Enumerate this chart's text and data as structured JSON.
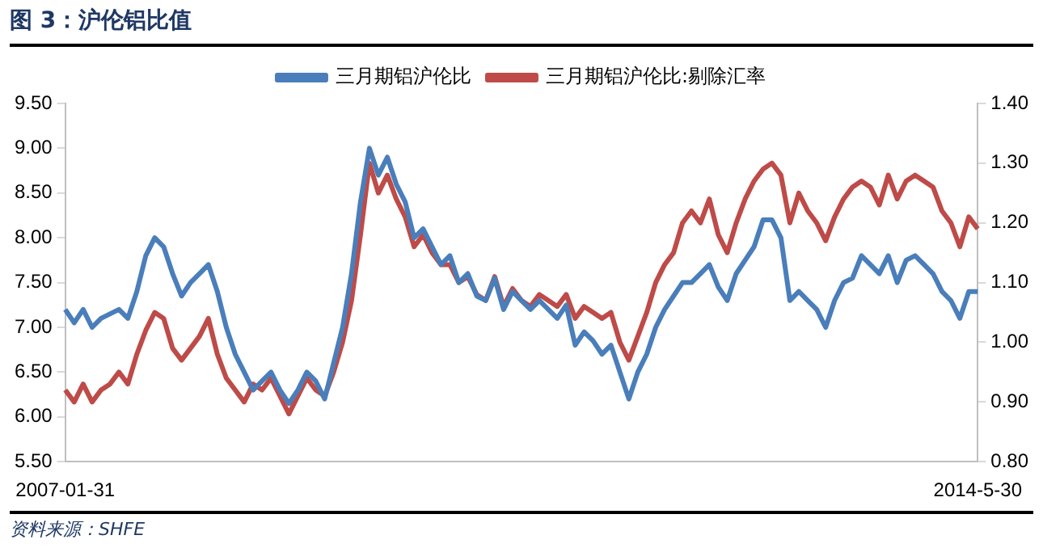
{
  "chart_data": {
    "type": "line",
    "title": "图 3：沪伦铝比值",
    "categories": [
      "2007-01-31",
      null,
      null,
      null,
      null,
      null,
      null,
      null,
      null,
      null,
      null,
      null,
      null,
      null,
      null,
      null,
      null,
      null,
      null,
      null,
      null,
      null,
      null,
      null,
      null,
      null,
      null,
      null,
      null,
      null,
      null,
      null,
      null,
      null,
      null,
      null,
      null,
      null,
      null,
      null,
      null,
      null,
      null,
      null,
      null,
      null,
      null,
      null,
      null,
      null,
      null,
      null,
      null,
      null,
      null,
      null,
      null,
      null,
      null,
      null,
      null,
      null,
      null,
      null,
      null,
      null,
      null,
      null,
      null,
      null,
      null,
      null,
      null,
      null,
      null,
      null,
      null,
      null,
      null,
      null,
      null,
      null,
      null,
      null,
      null,
      null,
      null,
      null,
      null,
      null,
      null,
      null,
      null,
      null,
      null,
      null,
      null,
      null,
      null,
      null,
      null,
      null,
      "2014-5-30"
    ],
    "series": [
      {
        "name": "三月期铝沪伦比",
        "color": "#4a7ebb",
        "values": [
          7.2,
          7.05,
          7.2,
          7.0,
          7.1,
          7.15,
          7.2,
          7.1,
          7.4,
          7.8,
          8.0,
          7.9,
          7.6,
          7.35,
          7.5,
          7.6,
          7.7,
          7.4,
          7.0,
          6.7,
          6.5,
          6.3,
          6.4,
          6.5,
          6.3,
          6.15,
          6.3,
          6.5,
          6.4,
          6.2,
          6.6,
          7.0,
          7.6,
          8.4,
          9.0,
          8.7,
          8.9,
          8.6,
          8.4,
          8.0,
          8.1,
          7.9,
          7.7,
          7.8,
          7.5,
          7.6,
          7.35,
          7.3,
          7.55,
          7.2,
          7.4,
          7.3,
          7.2,
          7.3,
          7.2,
          7.1,
          7.25,
          6.8,
          6.95,
          6.85,
          6.7,
          6.8,
          6.5,
          6.2,
          6.5,
          6.7,
          7.0,
          7.2,
          7.35,
          7.5,
          7.5,
          7.6,
          7.7,
          7.45,
          7.3,
          7.6,
          7.75,
          7.9,
          8.2,
          8.2,
          8.0,
          7.3,
          7.4,
          7.3,
          7.2,
          7.0,
          7.3,
          7.5,
          7.55,
          7.8,
          7.7,
          7.6,
          7.8,
          7.5,
          7.75,
          7.8,
          7.7,
          7.6,
          7.4,
          7.3,
          7.1,
          7.4,
          7.4
        ]
      },
      {
        "name": "三月期铝沪伦比:剔除汇率",
        "color": "#be4b48",
        "axis": "y2",
        "values": [
          0.92,
          0.9,
          0.93,
          0.9,
          0.92,
          0.93,
          0.95,
          0.93,
          0.98,
          1.02,
          1.05,
          1.04,
          0.99,
          0.97,
          0.99,
          1.01,
          1.04,
          0.98,
          0.94,
          0.92,
          0.9,
          0.93,
          0.92,
          0.94,
          0.91,
          0.88,
          0.91,
          0.94,
          0.92,
          0.91,
          0.95,
          1.0,
          1.07,
          1.18,
          1.3,
          1.25,
          1.28,
          1.24,
          1.21,
          1.16,
          1.18,
          1.15,
          1.13,
          1.13,
          1.1,
          1.11,
          1.08,
          1.07,
          1.11,
          1.06,
          1.09,
          1.07,
          1.06,
          1.08,
          1.07,
          1.06,
          1.08,
          1.04,
          1.06,
          1.05,
          1.04,
          1.05,
          1.0,
          0.97,
          1.01,
          1.05,
          1.1,
          1.13,
          1.15,
          1.2,
          1.22,
          1.2,
          1.24,
          1.18,
          1.15,
          1.2,
          1.24,
          1.27,
          1.29,
          1.3,
          1.28,
          1.2,
          1.25,
          1.22,
          1.2,
          1.17,
          1.21,
          1.24,
          1.26,
          1.27,
          1.26,
          1.23,
          1.28,
          1.24,
          1.27,
          1.28,
          1.27,
          1.26,
          1.22,
          1.2,
          1.16,
          1.21,
          1.19
        ]
      }
    ],
    "ylim": [
      5.5,
      9.5
    ],
    "yticks": [
      {
        "value": 5.5,
        "label": "5.50"
      },
      {
        "value": 6,
        "label": "6.00"
      },
      {
        "value": 6.5,
        "label": "6.50"
      },
      {
        "value": 7,
        "label": "7.00"
      },
      {
        "value": 7.5,
        "label": "7.50"
      },
      {
        "value": 8,
        "label": "8.00"
      },
      {
        "value": 8.5,
        "label": "8.50"
      },
      {
        "value": 9,
        "label": "9.00"
      },
      {
        "value": 9.5,
        "label": "9.50"
      }
    ],
    "y2lim": [
      0.8,
      1.4
    ],
    "y2ticks": [
      {
        "value": 0.8,
        "label": "0.80"
      },
      {
        "value": 0.9,
        "label": "0.90"
      },
      {
        "value": 1,
        "label": "1.00"
      },
      {
        "value": 1.1,
        "label": "1.10"
      },
      {
        "value": 1.2,
        "label": "1.20"
      },
      {
        "value": 1.3,
        "label": "1.30"
      },
      {
        "value": 1.4,
        "label": "1.40"
      }
    ],
    "legend": "top",
    "grid": false,
    "marker": "none",
    "annotations": [
      "资料来源：SHFE"
    ]
  }
}
